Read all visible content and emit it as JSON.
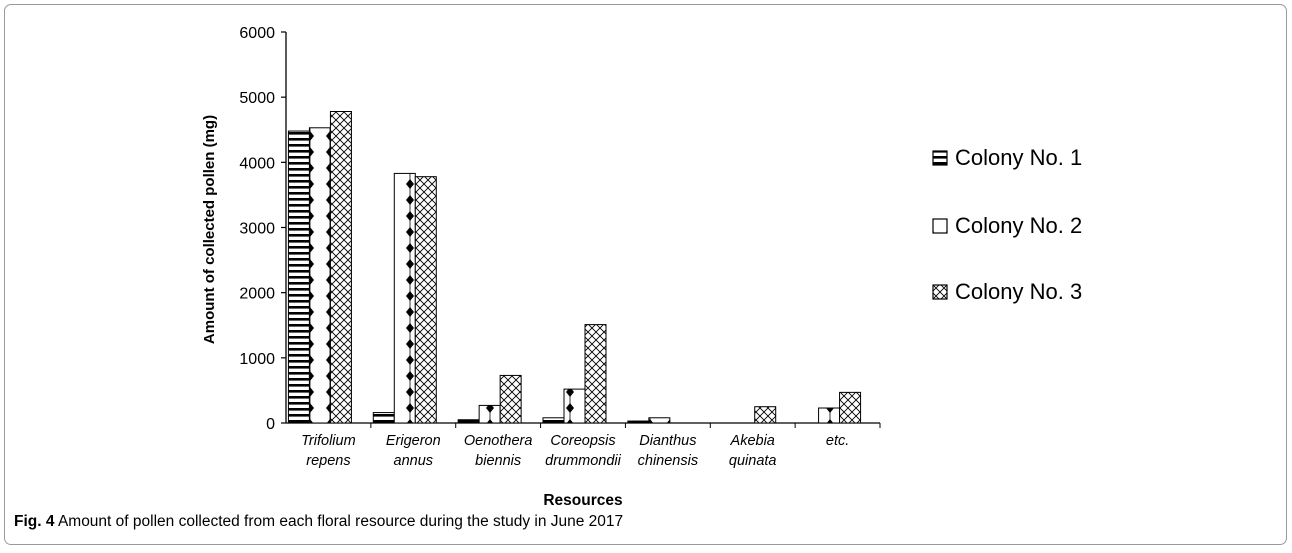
{
  "caption": {
    "label": "Fig. 4",
    "text": "Amount of pollen collected from each floral resource during the study in June 2017"
  },
  "chart_data": {
    "type": "bar",
    "xlabel": "Resources",
    "ylabel": "Amount of collected pollen (mg)",
    "ylim": [
      0,
      6000
    ],
    "yticks": [
      0,
      1000,
      2000,
      3000,
      4000,
      5000,
      6000
    ],
    "grid": false,
    "legend_position": "right",
    "categories": [
      [
        "Trifolium",
        "repens"
      ],
      [
        "Erigeron",
        "annus"
      ],
      [
        "Oenothera",
        "biennis"
      ],
      [
        "Coreopsis",
        "drummondii"
      ],
      [
        "Dianthus",
        "chinensis"
      ],
      [
        "Akebia",
        "quinata"
      ],
      [
        "etc."
      ]
    ],
    "series": [
      {
        "name": "Colony No. 1",
        "pattern": "horizontal-stripes",
        "values": [
          4480,
          160,
          50,
          80,
          30,
          0,
          0
        ]
      },
      {
        "name": "Colony No. 2",
        "pattern": "diamonds",
        "values": [
          4530,
          3830,
          270,
          520,
          80,
          0,
          230
        ]
      },
      {
        "name": "Colony No. 3",
        "pattern": "crosshatch",
        "values": [
          4780,
          3780,
          730,
          1510,
          0,
          250,
          470
        ]
      }
    ]
  }
}
